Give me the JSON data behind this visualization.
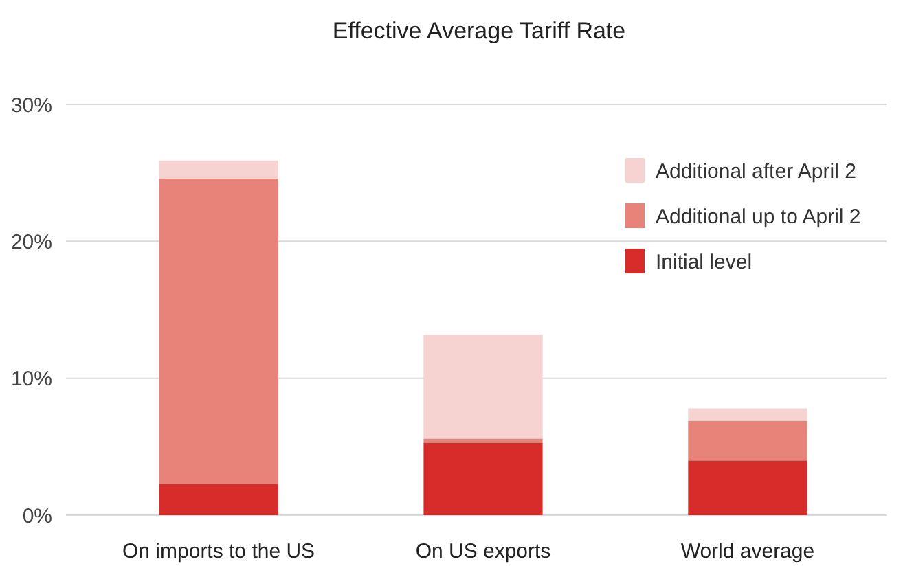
{
  "chart_data": {
    "type": "bar",
    "title": "Effective Average Tariff Rate",
    "stacked": true,
    "categories": [
      "On imports to the US",
      "On US exports",
      "World average"
    ],
    "series": [
      {
        "name": "Initial level",
        "color": "#d62d2a",
        "values": [
          2.3,
          5.3,
          4.0
        ]
      },
      {
        "name": "Additional up to April 2",
        "color": "#e8837a",
        "values": [
          22.3,
          0.3,
          2.9
        ]
      },
      {
        "name": "Additional after April 2",
        "color": "#f6d2d0",
        "values": [
          1.3,
          7.6,
          0.9
        ]
      }
    ],
    "ylim": [
      0,
      30
    ],
    "yticks": [
      {
        "value": 0,
        "label": "0%"
      },
      {
        "value": 10,
        "label": "10%"
      },
      {
        "value": 20,
        "label": "20%"
      },
      {
        "value": 30,
        "label": "30%"
      }
    ],
    "grid": "y",
    "legend": "top right"
  }
}
